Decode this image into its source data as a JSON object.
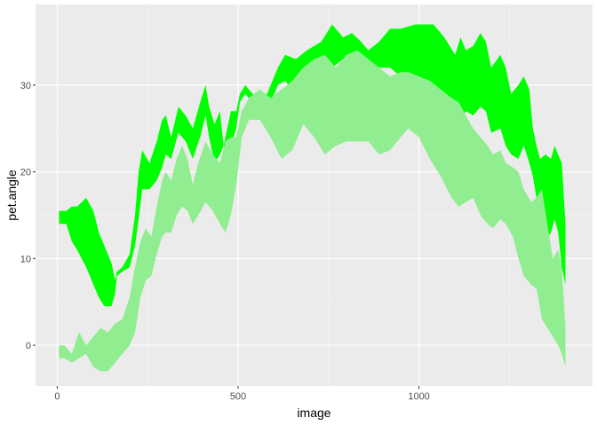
{
  "chart_data": {
    "type": "area",
    "title": "",
    "xlabel": "image",
    "ylabel": "pet.angle",
    "xlim": [
      -60,
      1480
    ],
    "ylim": [
      -4.7,
      39.3
    ],
    "x_ticks": [
      0,
      500,
      1000
    ],
    "x_tick_labels": [
      "0",
      "500",
      "1000"
    ],
    "y_ticks": [
      0,
      10,
      20,
      30
    ],
    "y_tick_labels": [
      "0",
      "10",
      "20",
      "30"
    ],
    "grid": true,
    "colors": {
      "panel_background": "#ebebeb",
      "grid_major": "#ffffff",
      "grid_minor": "#f5f5f5",
      "ribbon_upper": "#00ff00",
      "ribbon_lower": "#90ee90"
    },
    "series": [
      {
        "color": "#00ff00",
        "x": [
          5,
          25,
          40,
          55,
          80,
          100,
          115,
          130,
          150,
          160,
          165,
          180,
          200,
          215,
          225,
          235,
          255,
          275,
          290,
          300,
          315,
          335,
          355,
          375,
          395,
          410,
          420,
          435,
          450,
          460,
          470,
          480,
          495,
          505,
          520,
          540,
          560,
          580,
          600,
          610,
          630,
          660,
          690,
          730,
          760,
          790,
          815,
          840,
          860,
          890,
          920,
          950,
          990,
          1040,
          1070,
          1100,
          1115,
          1130,
          1150,
          1170,
          1185,
          1200,
          1225,
          1240,
          1255,
          1275,
          1290,
          1305,
          1315,
          1325,
          1335,
          1350,
          1365,
          1375,
          1385,
          1395,
          1405
        ],
        "upper": [
          15.5,
          15.5,
          16.0,
          16.0,
          17.0,
          15.5,
          13.0,
          11.5,
          9.5,
          7.5,
          8.5,
          9.0,
          10.5,
          15.0,
          20.0,
          22.5,
          21.0,
          23.5,
          26.0,
          26.5,
          24.0,
          27.5,
          26.5,
          25.0,
          28.0,
          30.0,
          27.5,
          25.5,
          27.0,
          23.0,
          25.0,
          27.0,
          27.0,
          29.0,
          30.0,
          29.0,
          28.5,
          29.0,
          31.0,
          32.0,
          33.5,
          33.0,
          34.0,
          35.0,
          37.0,
          35.5,
          36.0,
          35.0,
          34.0,
          35.0,
          36.5,
          36.5,
          37.0,
          37.0,
          35.5,
          33.5,
          35.5,
          34.0,
          34.5,
          36.0,
          35.0,
          32.0,
          33.5,
          32.0,
          29.0,
          30.0,
          31.0,
          29.5,
          25.0,
          23.0,
          21.5,
          22.0,
          21.5,
          23.0,
          22.0,
          21.0,
          14.0
        ],
        "lower": [
          14.0,
          14.0,
          12.0,
          11.0,
          9.0,
          7.0,
          5.5,
          4.5,
          4.5,
          6.0,
          8.0,
          8.5,
          9.0,
          11.5,
          14.5,
          18.0,
          18.0,
          19.0,
          20.5,
          22.0,
          21.5,
          24.5,
          23.5,
          21.5,
          24.0,
          26.5,
          24.0,
          21.0,
          22.0,
          23.0,
          22.0,
          23.0,
          25.0,
          28.0,
          29.0,
          28.0,
          27.5,
          27.5,
          29.0,
          30.0,
          30.5,
          29.0,
          31.0,
          32.0,
          32.0,
          33.0,
          33.5,
          31.0,
          31.0,
          32.0,
          32.0,
          31.0,
          31.0,
          29.0,
          28.0,
          27.0,
          26.0,
          27.0,
          26.5,
          27.5,
          27.0,
          24.5,
          25.0,
          23.0,
          22.0,
          21.5,
          23.0,
          21.0,
          19.5,
          17.0,
          14.0,
          12.0,
          13.0,
          14.5,
          13.0,
          9.0,
          7.0
        ]
      },
      {
        "color": "#90ee90",
        "x": [
          5,
          20,
          40,
          60,
          80,
          100,
          120,
          140,
          160,
          180,
          200,
          215,
          230,
          245,
          260,
          275,
          290,
          300,
          315,
          330,
          345,
          360,
          375,
          390,
          410,
          430,
          450,
          465,
          480,
          495,
          510,
          530,
          560,
          590,
          620,
          650,
          680,
          710,
          740,
          770,
          800,
          830,
          860,
          890,
          920,
          950,
          970,
          1000,
          1030,
          1060,
          1090,
          1110,
          1130,
          1150,
          1170,
          1190,
          1205,
          1225,
          1240,
          1260,
          1275,
          1290,
          1310,
          1325,
          1340,
          1355,
          1370,
          1385,
          1395,
          1405
        ],
        "upper": [
          0.0,
          0.0,
          -1.0,
          1.5,
          0.0,
          1.0,
          2.0,
          1.5,
          2.5,
          3.0,
          5.5,
          9.0,
          12.0,
          13.5,
          12.5,
          16.0,
          19.0,
          20.0,
          19.0,
          21.5,
          23.0,
          21.5,
          18.5,
          21.0,
          23.5,
          22.0,
          21.0,
          23.5,
          24.0,
          24.0,
          27.0,
          28.5,
          29.5,
          28.5,
          29.5,
          30.5,
          32.0,
          33.0,
          33.5,
          32.0,
          33.5,
          34.0,
          33.0,
          32.0,
          31.0,
          31.5,
          31.5,
          31.0,
          30.5,
          29.5,
          28.5,
          28.0,
          26.5,
          25.0,
          24.0,
          23.0,
          22.0,
          22.5,
          21.0,
          20.5,
          20.0,
          18.0,
          16.5,
          17.0,
          18.0,
          14.0,
          10.0,
          11.0,
          9.0,
          2.0
        ],
        "lower": [
          -1.5,
          -1.5,
          -2.0,
          -1.5,
          -1.0,
          -2.5,
          -3.0,
          -3.0,
          -2.0,
          -1.0,
          0.0,
          1.5,
          5.5,
          7.5,
          8.0,
          10.5,
          12.5,
          13.0,
          13.0,
          15.0,
          16.0,
          15.5,
          14.0,
          15.0,
          16.5,
          15.5,
          14.0,
          13.0,
          15.0,
          18.5,
          24.0,
          26.0,
          26.0,
          24.0,
          21.5,
          22.5,
          25.5,
          24.0,
          22.0,
          23.0,
          23.5,
          23.5,
          23.5,
          22.0,
          22.5,
          24.0,
          25.0,
          24.0,
          21.5,
          19.5,
          17.0,
          16.0,
          16.5,
          17.0,
          15.0,
          14.0,
          13.5,
          14.5,
          14.0,
          12.5,
          10.0,
          8.0,
          7.0,
          6.5,
          3.0,
          2.0,
          1.0,
          0.0,
          -1.0,
          -2.5
        ]
      }
    ]
  }
}
